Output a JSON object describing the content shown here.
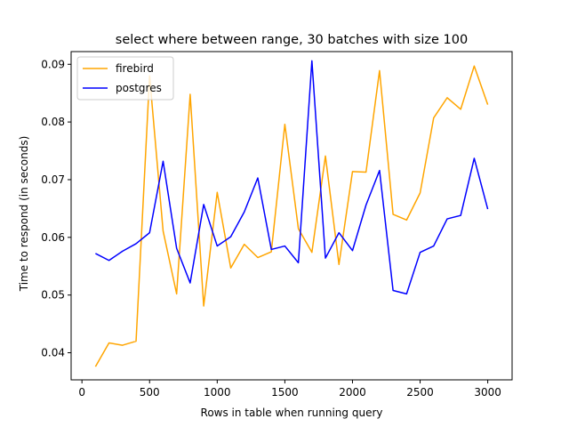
{
  "chart_data": {
    "type": "line",
    "title": "select where between range, 30 batches with size 100",
    "xlabel": "Rows in table when running query",
    "ylabel": "Time to respond (in seconds)",
    "xlim": [
      -80,
      3180
    ],
    "ylim": [
      0.0353,
      0.0922
    ],
    "x_ticks": [
      0,
      500,
      1000,
      1500,
      2000,
      2500,
      3000
    ],
    "x_tick_labels": [
      "0",
      "500",
      "1000",
      "1500",
      "2000",
      "2500",
      "3000"
    ],
    "y_ticks": [
      0.04,
      0.05,
      0.06,
      0.07,
      0.08,
      0.09
    ],
    "y_tick_labels": [
      "0.04",
      "0.05",
      "0.06",
      "0.07",
      "0.08",
      "0.09"
    ],
    "grid": false,
    "legend_position": "top-left",
    "x": [
      100,
      200,
      300,
      400,
      500,
      600,
      700,
      800,
      900,
      1000,
      1100,
      1200,
      1300,
      1400,
      1500,
      1600,
      1700,
      1800,
      1900,
      2000,
      2100,
      2200,
      2300,
      2400,
      2500,
      2600,
      2700,
      2800,
      2900,
      3000
    ],
    "series": [
      {
        "name": "firebird",
        "color": "#ffa500",
        "values": [
          0.0376,
          0.0417,
          0.0413,
          0.042,
          0.088,
          0.0611,
          0.0502,
          0.0848,
          0.0481,
          0.0678,
          0.0547,
          0.0588,
          0.0565,
          0.0575,
          0.0796,
          0.0615,
          0.0574,
          0.0741,
          0.0553,
          0.0714,
          0.0713,
          0.0889,
          0.064,
          0.063,
          0.0677,
          0.0807,
          0.0842,
          0.0822,
          0.0897,
          0.083
        ]
      },
      {
        "name": "postgres",
        "color": "#0000ff",
        "values": [
          0.0572,
          0.056,
          0.0576,
          0.0589,
          0.0608,
          0.0732,
          0.0581,
          0.0521,
          0.0657,
          0.0585,
          0.0601,
          0.0644,
          0.0703,
          0.0579,
          0.0585,
          0.0556,
          0.0906,
          0.0564,
          0.0608,
          0.0577,
          0.0656,
          0.0716,
          0.0508,
          0.0502,
          0.0574,
          0.0585,
          0.0632,
          0.0638,
          0.0737,
          0.0649
        ]
      }
    ]
  }
}
